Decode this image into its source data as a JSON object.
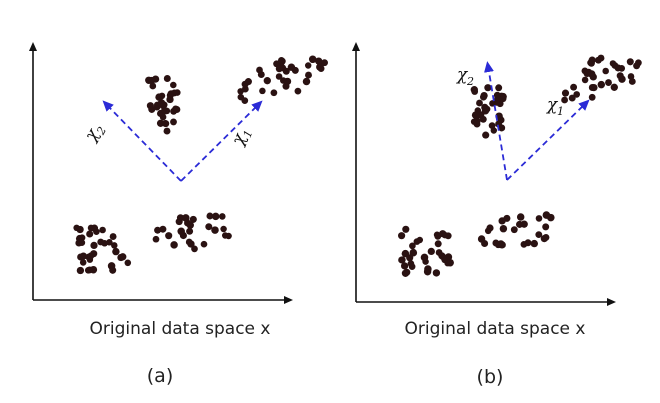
{
  "panels": [
    {
      "id": "a",
      "caption": "Original data space x",
      "label": "(a)",
      "axes": [
        {
          "symbol": "χ",
          "subscript": "1"
        },
        {
          "symbol": "χ",
          "subscript": "2"
        }
      ]
    },
    {
      "id": "b",
      "caption": "Original data space x",
      "label": "(b)",
      "axes": [
        {
          "symbol": "χ",
          "subscript": "1"
        },
        {
          "symbol": "χ",
          "subscript": "2"
        }
      ]
    }
  ],
  "colors": {
    "point": "#2a1212",
    "axis": "#111111",
    "projection_axis": "#2b2bd6"
  }
}
